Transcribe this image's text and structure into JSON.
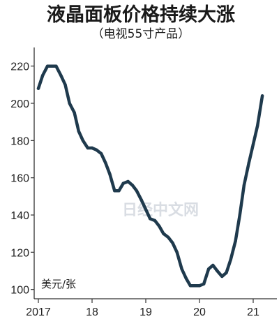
{
  "chart_data": {
    "type": "line",
    "title": "液晶面板价格持续大涨",
    "subtitle": "（电视55寸产品）",
    "ylabel": "美元/张",
    "ylim": [
      95,
      230
    ],
    "xlim": [
      2017,
      21.35
    ],
    "yticks": [
      100,
      120,
      140,
      160,
      180,
      200,
      220
    ],
    "xticks": [
      {
        "value": 2017,
        "label": "2017"
      },
      {
        "value": 18,
        "label": "18"
      },
      {
        "value": 19,
        "label": "19"
      },
      {
        "value": 20,
        "label": "20"
      },
      {
        "value": 21,
        "label": "21"
      }
    ],
    "line_color": "#1f3a4d",
    "series": [
      {
        "x": [
          2017.0,
          2017.08,
          2017.17,
          2017.25,
          2017.33,
          2017.42,
          2017.5,
          2017.58,
          2017.67,
          2017.75,
          2017.83,
          2017.92,
          2018.0,
          2018.08,
          2018.17,
          2018.25,
          2018.33,
          2018.42,
          2018.5,
          2018.58,
          2018.67,
          2018.75,
          2018.83,
          2018.92,
          2019.0,
          2019.08,
          2019.17,
          2019.25,
          2019.33,
          2019.42,
          2019.5,
          2019.58,
          2019.67,
          2019.75,
          2019.83,
          2019.92,
          2020.0,
          2020.08,
          2020.17,
          2020.25,
          2020.33,
          2020.42,
          2020.5,
          2020.58,
          2020.67,
          2020.75,
          2020.83,
          2020.92,
          2021.0,
          2021.08,
          2021.17
        ],
        "y": [
          208,
          215,
          220,
          220,
          220,
          215,
          210,
          200,
          195,
          185,
          180,
          176,
          176,
          175,
          173,
          168,
          162,
          153,
          153,
          157,
          158,
          156,
          153,
          148,
          143,
          138,
          137,
          134,
          130,
          128,
          125,
          120,
          111,
          106,
          102,
          102,
          102,
          103,
          111,
          113,
          110,
          107,
          109,
          116,
          126,
          140,
          156,
          168,
          178,
          188,
          204
        ]
      }
    ]
  },
  "watermark": "日经中文网"
}
